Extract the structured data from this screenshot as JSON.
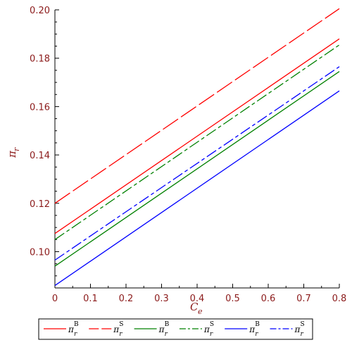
{
  "chart_data": {
    "type": "line",
    "xlabel": {
      "main": "C",
      "sub": "e"
    },
    "ylabel": {
      "main": "π",
      "sub": "r"
    },
    "xlim": [
      0,
      0.8
    ],
    "ylim": [
      0.085,
      0.2
    ],
    "xticks": [
      {
        "value": 0,
        "label": "0"
      },
      {
        "value": 0.1,
        "label": "0.1"
      },
      {
        "value": 0.2,
        "label": "0.2"
      },
      {
        "value": 0.3,
        "label": "0.3"
      },
      {
        "value": 0.4,
        "label": "0.4"
      },
      {
        "value": 0.5,
        "label": "0.5"
      },
      {
        "value": 0.6,
        "label": "0.6"
      },
      {
        "value": 0.7,
        "label": "0.7"
      },
      {
        "value": 0.8,
        "label": "0.8"
      }
    ],
    "yticks": [
      {
        "value": 0.1,
        "label": "0.10"
      },
      {
        "value": 0.12,
        "label": "0.12"
      },
      {
        "value": 0.14,
        "label": "0.14"
      },
      {
        "value": 0.16,
        "label": "0.16"
      },
      {
        "value": 0.18,
        "label": "0.18"
      },
      {
        "value": 0.2,
        "label": "0.20"
      }
    ],
    "grid": false,
    "legend_position": "bottom",
    "series": [
      {
        "key": "red-solid",
        "sym": "π",
        "sub": "r",
        "sup": "B",
        "color": "#ff0000",
        "dash": "solid",
        "x": [
          0,
          0.8
        ],
        "y": [
          0.1075,
          0.188
        ]
      },
      {
        "key": "red-dash",
        "sym": "π",
        "sub": "r",
        "sup": "S",
        "color": "#ff0000",
        "dash": "longdash",
        "x": [
          0,
          0.8
        ],
        "y": [
          0.12,
          0.2005
        ]
      },
      {
        "key": "green-solid",
        "sym": "π",
        "sub": "r",
        "sup": "B",
        "color": "#008000",
        "dash": "solid",
        "x": [
          0,
          0.8
        ],
        "y": [
          0.094,
          0.1745
        ]
      },
      {
        "key": "green-dash",
        "sym": "π",
        "sub": "r",
        "sup": "S",
        "color": "#008000",
        "dash": "dashdot",
        "x": [
          0,
          0.8
        ],
        "y": [
          0.105,
          0.1855
        ]
      },
      {
        "key": "blue-solid",
        "sym": "π",
        "sub": "r",
        "sup": "B",
        "color": "#0000ff",
        "dash": "solid",
        "x": [
          0,
          0.8
        ],
        "y": [
          0.086,
          0.1665
        ]
      },
      {
        "key": "blue-dash",
        "sym": "π",
        "sub": "r",
        "sup": "S",
        "color": "#0000ff",
        "dash": "dashdot",
        "x": [
          0,
          0.8
        ],
        "y": [
          0.0965,
          0.1765
        ]
      }
    ]
  }
}
